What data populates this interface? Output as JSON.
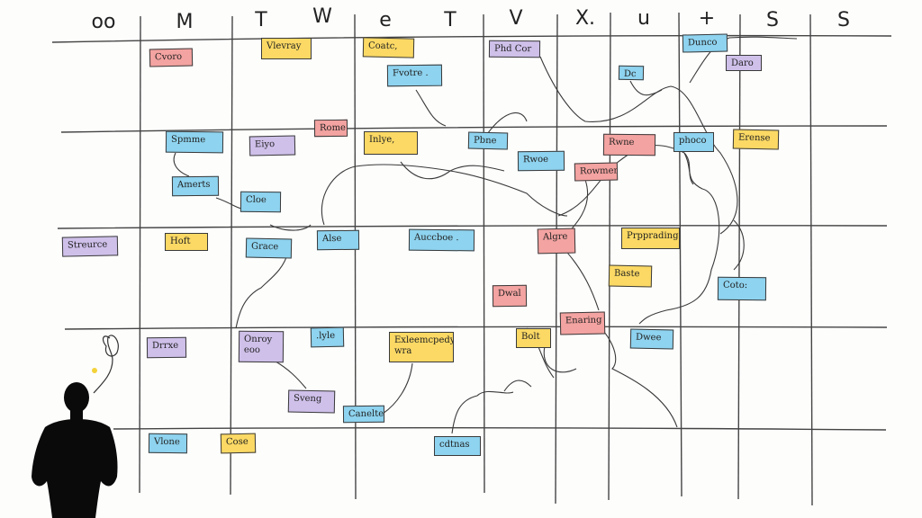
{
  "colors": {
    "pink": "#f3a3a1",
    "yellow": "#fbd964",
    "blue": "#8ed3ef",
    "purple": "#cfc0ea",
    "ink": "#333333"
  },
  "header": [
    "oo",
    "M",
    "T",
    "W",
    "e",
    "T",
    "V",
    "X.",
    "u",
    "+",
    "S",
    "S"
  ],
  "notes": [
    {
      "text": "Cvoro",
      "color": "pink"
    },
    {
      "text": "Vlevray",
      "color": "yellow"
    },
    {
      "text": "Coatc,",
      "color": "yellow"
    },
    {
      "text": "Fvotre .",
      "color": "blue"
    },
    {
      "text": "Phd Cor",
      "color": "purple"
    },
    {
      "text": "Dunco",
      "color": "blue"
    },
    {
      "text": "Daro",
      "color": "purple"
    },
    {
      "text": "Dc",
      "color": "blue"
    },
    {
      "text": "Rome",
      "color": "pink"
    },
    {
      "text": "Spmme",
      "color": "blue"
    },
    {
      "text": "Eiyo",
      "color": "purple"
    },
    {
      "text": "Inlye,",
      "color": "yellow"
    },
    {
      "text": "Pbne",
      "color": "blue"
    },
    {
      "text": "Rwoe",
      "color": "blue"
    },
    {
      "text": "Rwne",
      "color": "pink"
    },
    {
      "text": "Rowmer",
      "color": "pink"
    },
    {
      "text": "phoco",
      "color": "blue"
    },
    {
      "text": "Erense",
      "color": "yellow"
    },
    {
      "text": "Amerts",
      "color": "blue"
    },
    {
      "text": "Cloe",
      "color": "blue"
    },
    {
      "text": "Streurce",
      "color": "purple"
    },
    {
      "text": "Hoft",
      "color": "yellow"
    },
    {
      "text": "Grace",
      "color": "blue"
    },
    {
      "text": "Alse",
      "color": "blue"
    },
    {
      "text": "Auccboe .",
      "color": "blue"
    },
    {
      "text": "Algre",
      "color": "pink"
    },
    {
      "text": "Prpprading",
      "color": "yellow"
    },
    {
      "text": "Baste",
      "color": "yellow"
    },
    {
      "text": "Dwal",
      "color": "pink"
    },
    {
      "text": "Coto:",
      "color": "blue"
    },
    {
      "text": "Enaring",
      "color": "pink"
    },
    {
      "text": "Bolt",
      "color": "yellow"
    },
    {
      "text": "Dwee",
      "color": "blue"
    },
    {
      "text": "Drrxe",
      "color": "purple"
    },
    {
      "text": "Onroy eoo",
      "color": "purple"
    },
    {
      "text": ".lyle",
      "color": "blue"
    },
    {
      "text": "Exleemcpedy wra",
      "color": "yellow"
    },
    {
      "text": "Sveng",
      "color": "purple"
    },
    {
      "text": "Canelte",
      "color": "blue"
    },
    {
      "text": "Vlone",
      "color": "blue"
    },
    {
      "text": "Cose",
      "color": "yellow"
    },
    {
      "text": "cdtnas",
      "color": "blue"
    }
  ],
  "figure": {
    "icon": "person-silhouette-icon",
    "thought": "thought-squiggle-icon"
  }
}
